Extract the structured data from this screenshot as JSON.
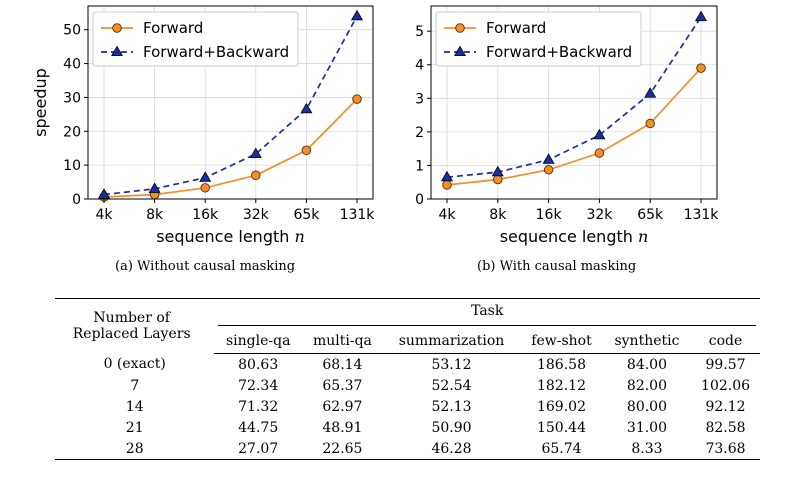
{
  "chart_data": [
    {
      "type": "line",
      "caption": "(a) Without causal masking",
      "xlabel": "sequence length n",
      "ylabel": "speedup",
      "categories": [
        "4k",
        "8k",
        "16k",
        "32k",
        "65k",
        "131k"
      ],
      "ylim": [
        0,
        57
      ],
      "yticks": [
        0,
        10,
        20,
        30,
        40,
        50
      ],
      "grid": true,
      "legend": "top-left",
      "series": [
        {
          "name": "Forward",
          "values": [
            0.6,
            1.3,
            3.3,
            7.0,
            14.4,
            29.5
          ],
          "color": "#f28e2b",
          "marker": "circle",
          "dash": false
        },
        {
          "name": "Forward+Backward",
          "values": [
            1.3,
            3.0,
            6.3,
            13.3,
            26.5,
            54.0
          ],
          "color": "#1a2fa0",
          "marker": "triangle",
          "dash": true
        }
      ]
    },
    {
      "type": "line",
      "caption": "(b) With causal masking",
      "xlabel": "sequence length n",
      "ylabel": "speedup",
      "categories": [
        "4k",
        "8k",
        "16k",
        "32k",
        "65k",
        "131k"
      ],
      "ylim": [
        0,
        5.75
      ],
      "yticks": [
        0,
        1,
        2,
        3,
        4,
        5
      ],
      "grid": true,
      "legend": "top-left",
      "series": [
        {
          "name": "Forward",
          "values": [
            0.42,
            0.58,
            0.87,
            1.37,
            2.25,
            3.9
          ],
          "color": "#f28e2b",
          "marker": "circle",
          "dash": false
        },
        {
          "name": "Forward+Backward",
          "values": [
            0.65,
            0.8,
            1.17,
            1.9,
            3.14,
            5.42
          ],
          "color": "#1a2fa0",
          "marker": "triangle",
          "dash": true
        }
      ]
    }
  ],
  "table": {
    "row_header": [
      "Number of",
      "Replaced Layers"
    ],
    "group_header": "Task",
    "columns": [
      "single-qa",
      "multi-qa",
      "summarization",
      "few-shot",
      "synthetic",
      "code"
    ],
    "rows": [
      {
        "label": "0 (exact)",
        "values": [
          "80.63",
          "68.14",
          "53.12",
          "186.58",
          "84.00",
          "99.57"
        ]
      },
      {
        "label": "7",
        "values": [
          "72.34",
          "65.37",
          "52.54",
          "182.12",
          "82.00",
          "102.06"
        ]
      },
      {
        "label": "14",
        "values": [
          "71.32",
          "62.97",
          "52.13",
          "169.02",
          "80.00",
          "92.12"
        ]
      },
      {
        "label": "21",
        "values": [
          "44.75",
          "48.91",
          "50.90",
          "150.44",
          "31.00",
          "82.58"
        ]
      },
      {
        "label": "28",
        "values": [
          "27.07",
          "22.65",
          "46.28",
          "65.74",
          "8.33",
          "73.68"
        ]
      }
    ]
  }
}
